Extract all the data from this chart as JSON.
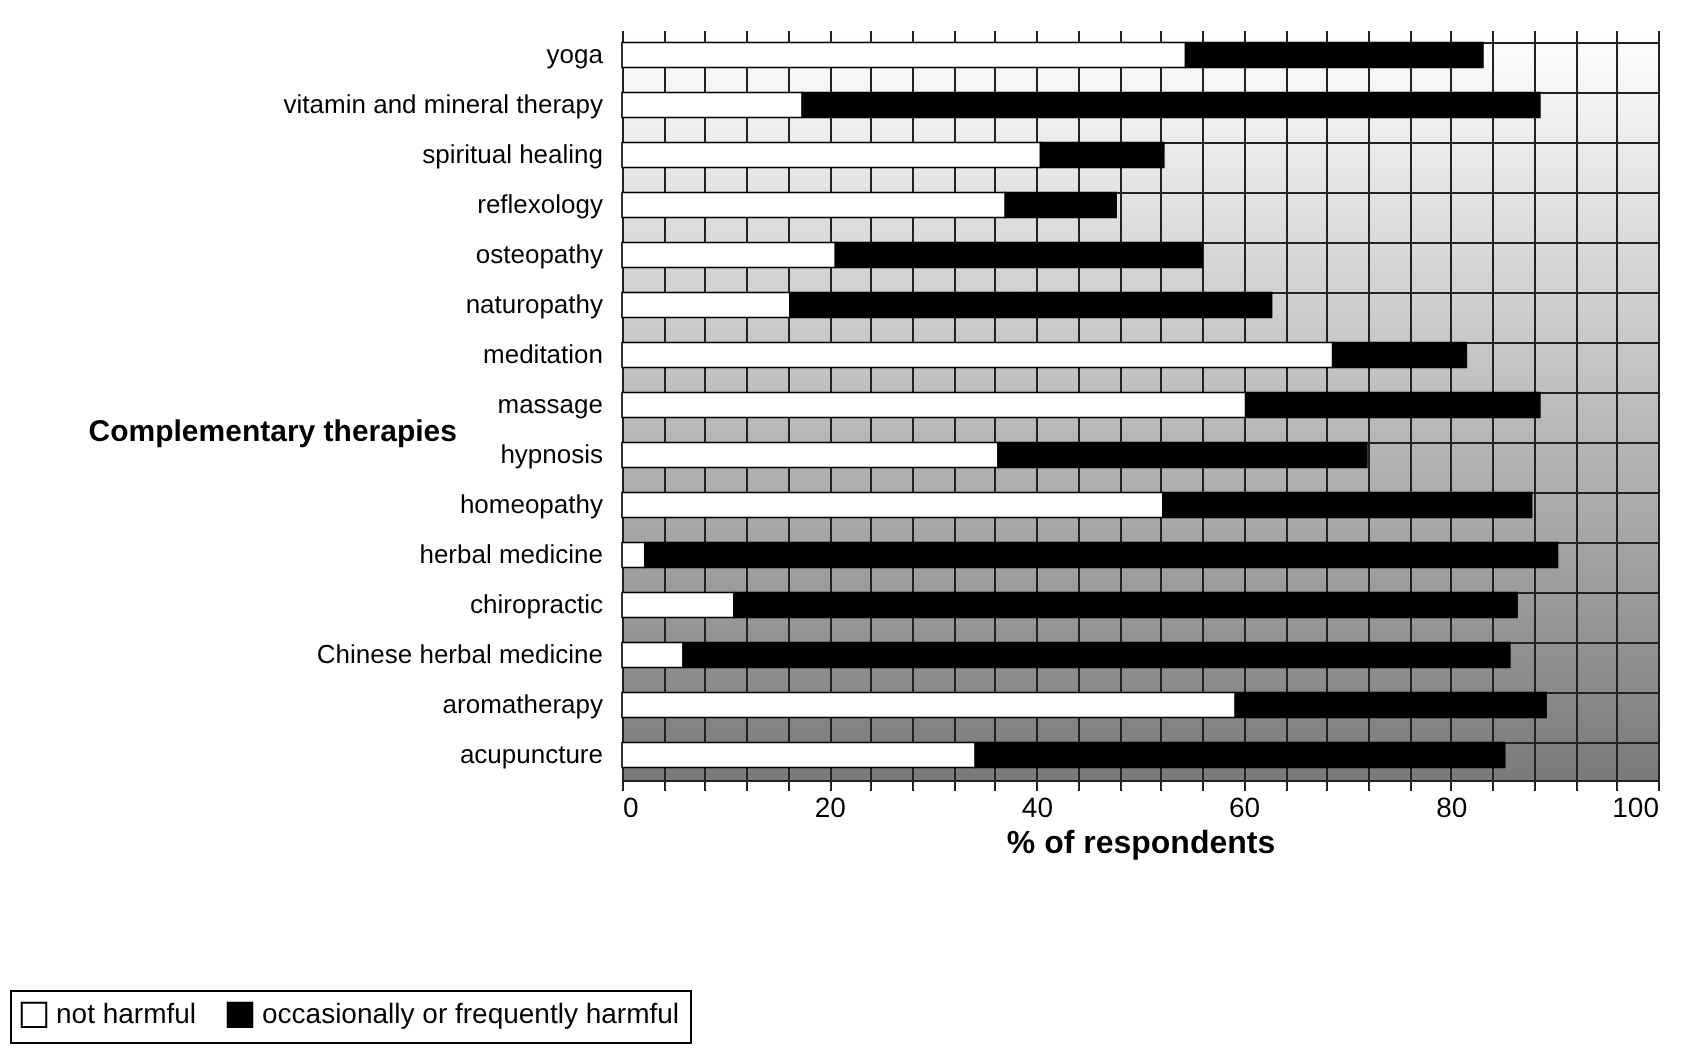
{
  "chart_data": {
    "type": "bar",
    "orientation": "horizontal",
    "stacked": true,
    "ylabel": "Complementary therapies",
    "xlabel": "% of respondents",
    "categories": [
      "yoga",
      "vitamin and mineral therapy",
      "spiritual healing",
      "reflexology",
      "osteopathy",
      "naturopathy",
      "meditation",
      "massage",
      "hypnosis",
      "homeopathy",
      "herbal medicine",
      "chiropractic",
      "Chinese herbal medicine",
      "aromatherapy",
      "acupuncture"
    ],
    "series": [
      {
        "name": "not harmful",
        "color": "#ffffff",
        "values": [
          54.4,
          17.4,
          40.4,
          37.0,
          20.6,
          16.2,
          68.6,
          60.2,
          36.3,
          52.2,
          2.2,
          10.8,
          5.9,
          59.2,
          34.1
        ]
      },
      {
        "name": "occasionally or frequently harmful",
        "color": "#000000",
        "values": [
          28.7,
          71.2,
          11.9,
          10.7,
          35.4,
          46.5,
          12.9,
          28.4,
          35.6,
          35.6,
          88.1,
          75.6,
          79.8,
          30.0,
          51.1
        ]
      }
    ],
    "xlim": [
      0,
      100
    ],
    "xticks": [
      0,
      {
        "value": 4,
        "label": null
      },
      {
        "value": 8,
        "label": null
      },
      {
        "value": 12,
        "label": null
      },
      {
        "value": 16,
        "label": null
      },
      20,
      {
        "value": 24,
        "label": null
      },
      {
        "value": 28,
        "label": null
      },
      {
        "value": 32,
        "label": null
      },
      {
        "value": 36,
        "label": null
      },
      40,
      {
        "value": 44,
        "label": null
      },
      {
        "value": 48,
        "label": null
      },
      {
        "value": 52,
        "label": null
      },
      {
        "value": 56,
        "label": null
      },
      60,
      {
        "value": 64,
        "label": null
      },
      {
        "value": 68,
        "label": null
      },
      {
        "value": 72,
        "label": null
      },
      {
        "value": 76,
        "label": null
      },
      80,
      {
        "value": 84,
        "label": null
      },
      {
        "value": 88,
        "label": null
      },
      {
        "value": 92,
        "label": null
      },
      {
        "value": 96,
        "label": null
      },
      100
    ],
    "grid": true,
    "legend": "bottom left"
  }
}
